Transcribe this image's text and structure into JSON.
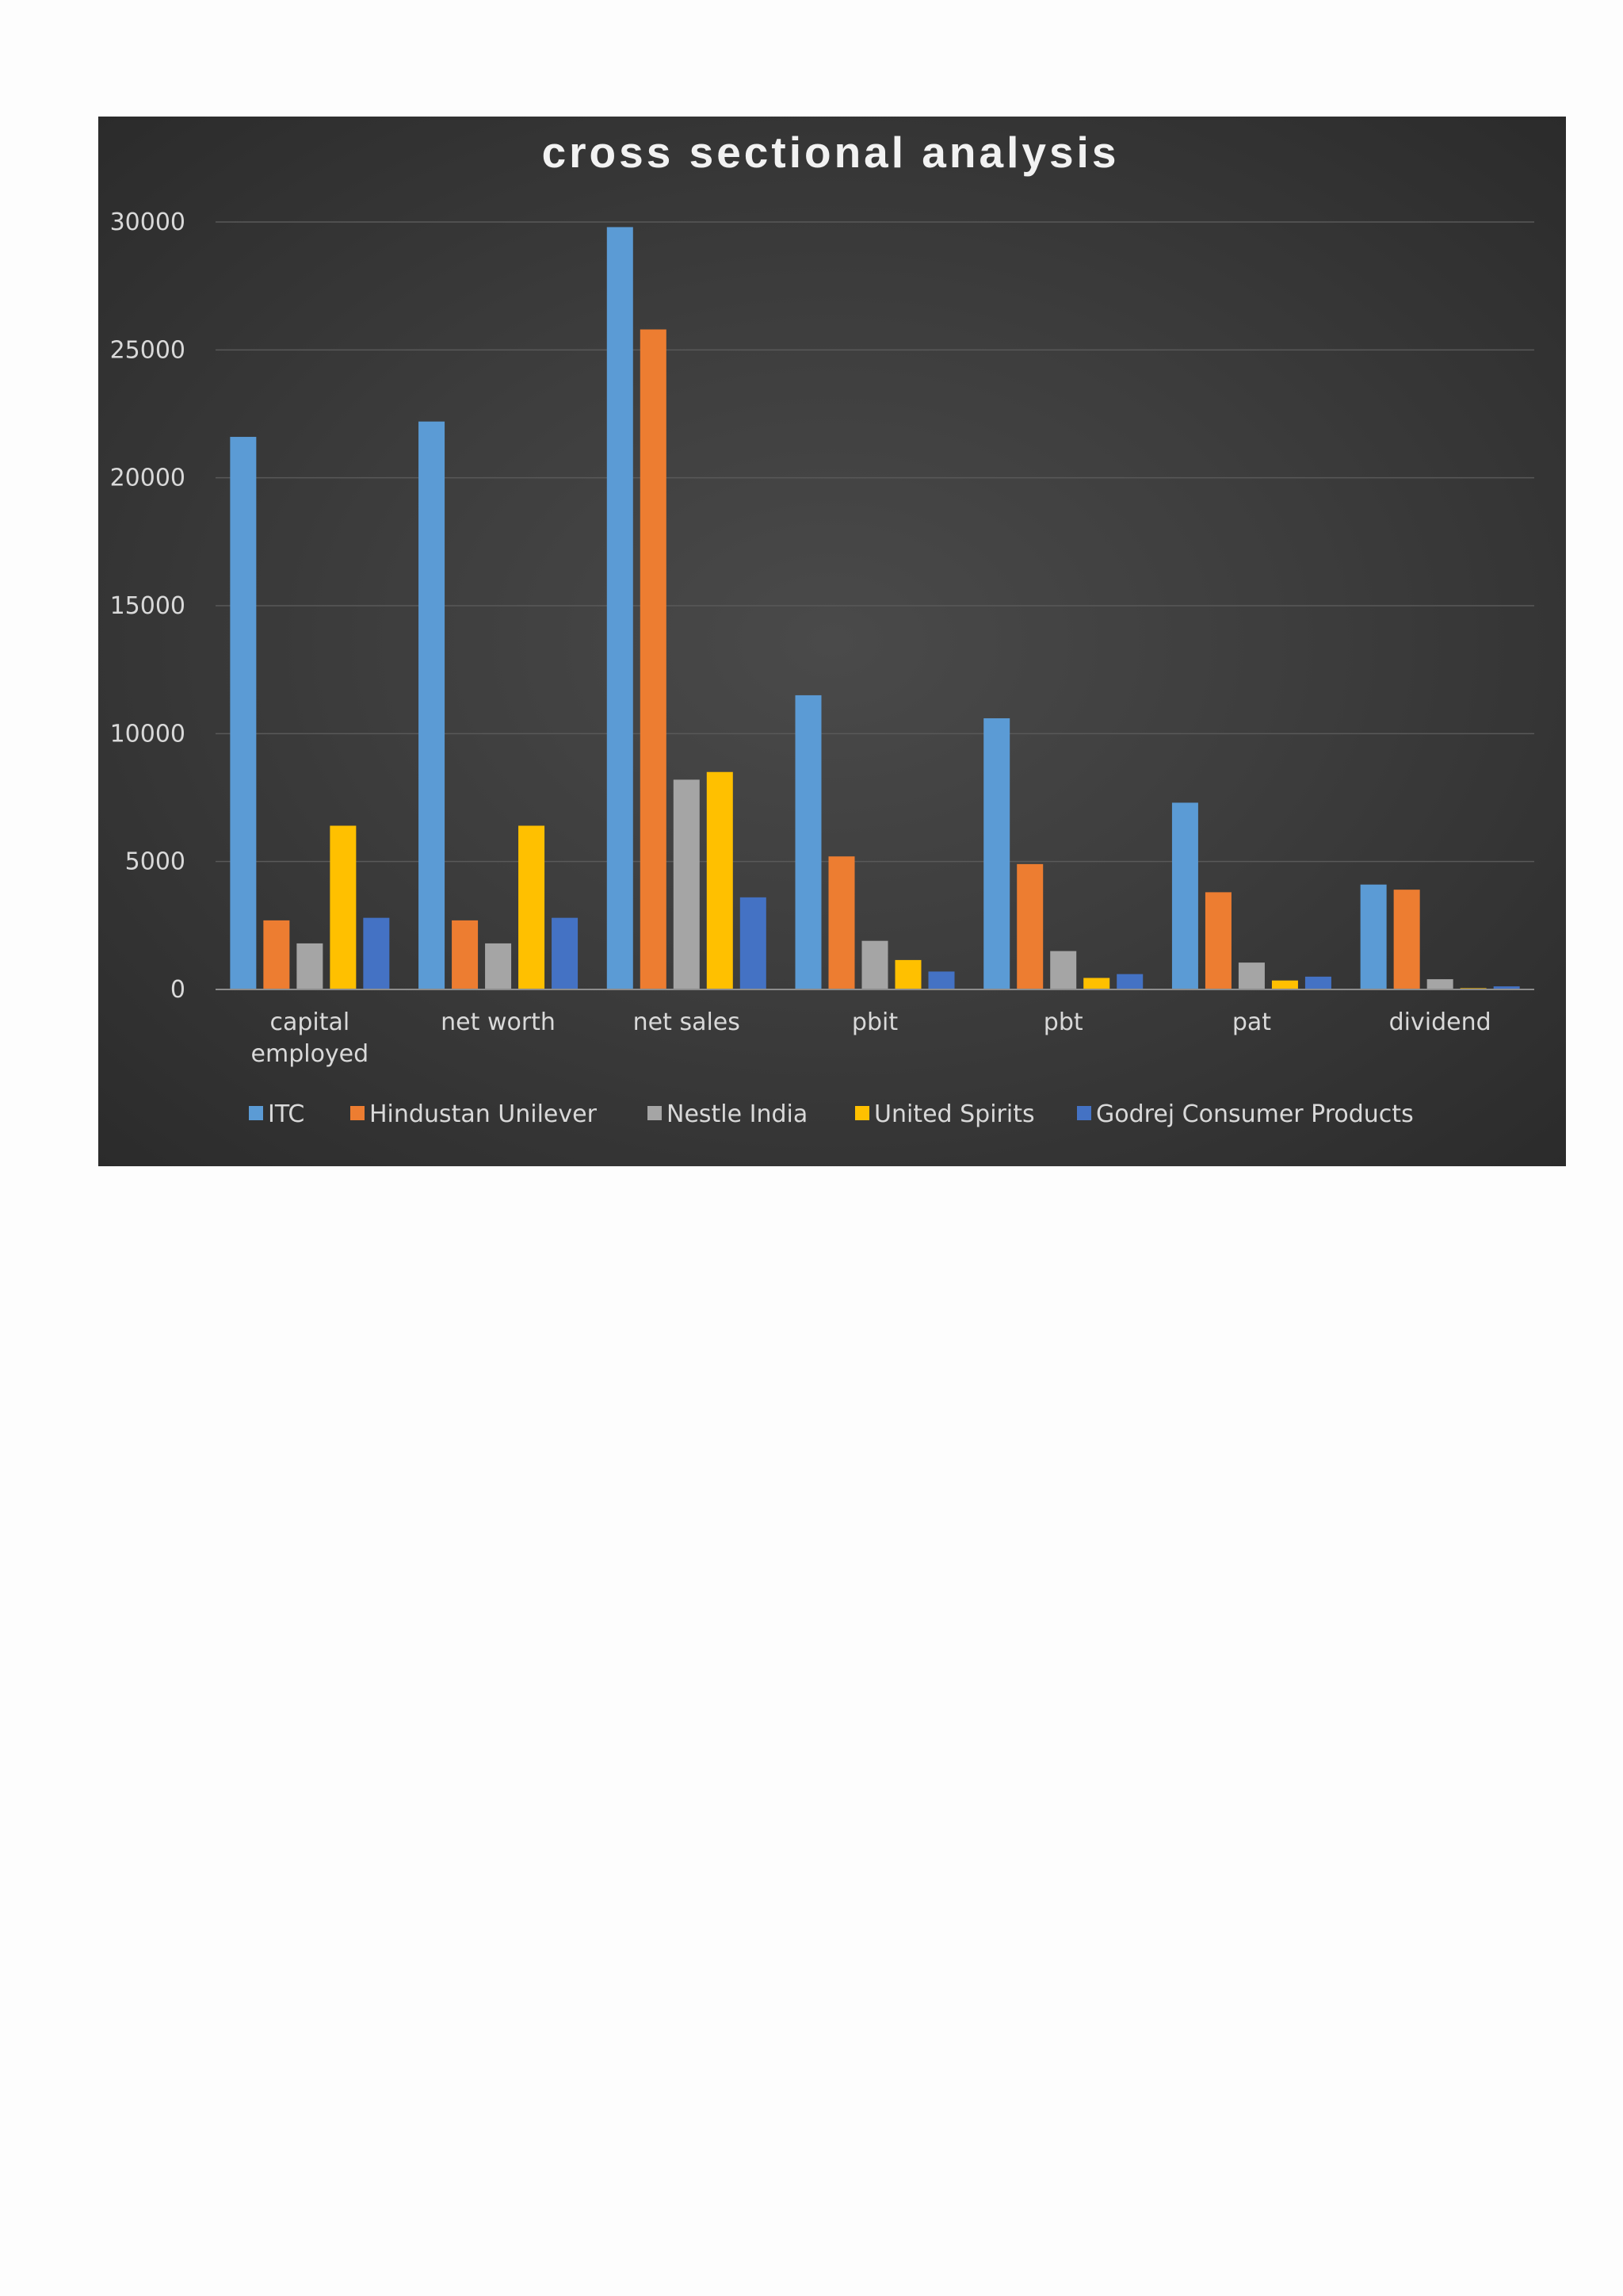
{
  "chart_data": {
    "type": "bar",
    "title": "cross sectional analysis",
    "xlabel": "",
    "ylabel": "",
    "ylim": [
      0,
      30000
    ],
    "yticks": [
      0,
      5000,
      10000,
      15000,
      20000,
      25000,
      30000
    ],
    "grid": true,
    "legend": "bottom",
    "categories": [
      "capital employed",
      "net worth",
      "net sales",
      "pbit",
      "pbt",
      "pat",
      "dividend"
    ],
    "series": [
      {
        "name": "ITC",
        "color": "#5b9bd5",
        "values": [
          21600,
          22200,
          29800,
          11500,
          10600,
          7300,
          4100
        ]
      },
      {
        "name": "Hindustan Unilever",
        "color": "#ed7d31",
        "values": [
          2700,
          2700,
          25800,
          5200,
          4900,
          3800,
          3900
        ]
      },
      {
        "name": "Nestle India",
        "color": "#a5a5a5",
        "values": [
          1800,
          1800,
          8200,
          1900,
          1500,
          1050,
          400
        ]
      },
      {
        "name": "United Spirits",
        "color": "#ffc000",
        "values": [
          6400,
          6400,
          8500,
          1150,
          450,
          350,
          50
        ]
      },
      {
        "name": "Godrej Consumer Products",
        "color": "#4472c4",
        "values": [
          2800,
          2800,
          3600,
          700,
          600,
          500,
          120
        ]
      }
    ]
  }
}
